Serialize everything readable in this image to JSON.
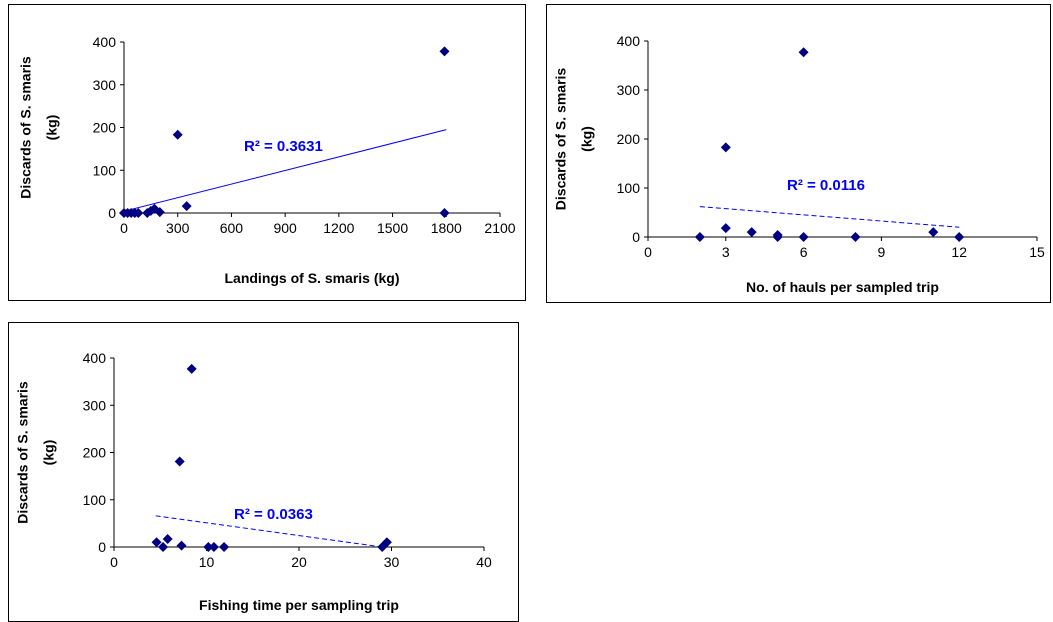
{
  "chart_data": [
    {
      "type": "scatter",
      "title": "",
      "xlabel": "Landings of S. smaris (kg)",
      "ylabel_line1": "Discards of S. smaris",
      "ylabel_line2": "(kg)",
      "xlim": [
        0,
        2100
      ],
      "ylim": [
        0,
        400
      ],
      "xticks": [
        0,
        300,
        600,
        900,
        1200,
        1500,
        1800,
        2100
      ],
      "yticks": [
        0,
        100,
        200,
        300,
        400
      ],
      "grid": false,
      "marker_color": "#000080",
      "trend_color": "#0000FF",
      "trend_style": "solid",
      "trend_line": {
        "x": [
          0,
          1800
        ],
        "y": [
          4,
          195
        ]
      },
      "r2_label": "R² = 0.3631",
      "points": [
        {
          "x": 0,
          "y": 0
        },
        {
          "x": 20,
          "y": 0
        },
        {
          "x": 40,
          "y": 0
        },
        {
          "x": 60,
          "y": 0
        },
        {
          "x": 80,
          "y": 0
        },
        {
          "x": 130,
          "y": 0
        },
        {
          "x": 150,
          "y": 5
        },
        {
          "x": 170,
          "y": 10
        },
        {
          "x": 200,
          "y": 2
        },
        {
          "x": 300,
          "y": 183
        },
        {
          "x": 350,
          "y": 16
        },
        {
          "x": 1790,
          "y": 378
        },
        {
          "x": 1790,
          "y": 0
        }
      ]
    },
    {
      "type": "scatter",
      "title": "",
      "xlabel": "No. of hauls per sampled trip",
      "ylabel_line1": "Discards of S. smaris",
      "ylabel_line2": "(kg)",
      "xlim": [
        0,
        15
      ],
      "ylim": [
        0,
        400
      ],
      "xticks": [
        0,
        3,
        6,
        9,
        12,
        15
      ],
      "yticks": [
        0,
        100,
        200,
        300,
        400
      ],
      "grid": false,
      "marker_color": "#000080",
      "trend_color": "#0000FF",
      "trend_style": "dashed",
      "trend_line": {
        "x": [
          2,
          12
        ],
        "y": [
          62,
          20
        ]
      },
      "r2_label": "R² = 0.0116",
      "points": [
        {
          "x": 2,
          "y": 0
        },
        {
          "x": 3,
          "y": 183
        },
        {
          "x": 3,
          "y": 18
        },
        {
          "x": 4,
          "y": 10
        },
        {
          "x": 5,
          "y": 4
        },
        {
          "x": 5,
          "y": 0
        },
        {
          "x": 6,
          "y": 377
        },
        {
          "x": 6,
          "y": 0
        },
        {
          "x": 8,
          "y": 0
        },
        {
          "x": 11,
          "y": 10
        },
        {
          "x": 12,
          "y": 0
        }
      ]
    },
    {
      "type": "scatter",
      "title": "",
      "xlabel": "Fishing time per sampling trip",
      "ylabel_line1": "Discards of S. smaris",
      "ylabel_line2": "(kg)",
      "xlim": [
        0,
        40
      ],
      "ylim": [
        0,
        400
      ],
      "xticks": [
        0,
        10,
        20,
        30,
        40
      ],
      "yticks": [
        0,
        100,
        200,
        300,
        400
      ],
      "grid": false,
      "marker_color": "#000080",
      "trend_color": "#0000FF",
      "trend_style": "dashed",
      "trend_line": {
        "x": [
          4.5,
          29
        ],
        "y": [
          66,
          0
        ]
      },
      "r2_label": "R² = 0.0363",
      "points": [
        {
          "x": 4.6,
          "y": 10
        },
        {
          "x": 5.3,
          "y": 0
        },
        {
          "x": 5.8,
          "y": 17
        },
        {
          "x": 7.1,
          "y": 181
        },
        {
          "x": 7.3,
          "y": 3
        },
        {
          "x": 8.4,
          "y": 377
        },
        {
          "x": 10.2,
          "y": 0
        },
        {
          "x": 10.8,
          "y": 0
        },
        {
          "x": 11.9,
          "y": 0
        },
        {
          "x": 29.0,
          "y": 0
        },
        {
          "x": 29.5,
          "y": 10
        }
      ]
    }
  ]
}
